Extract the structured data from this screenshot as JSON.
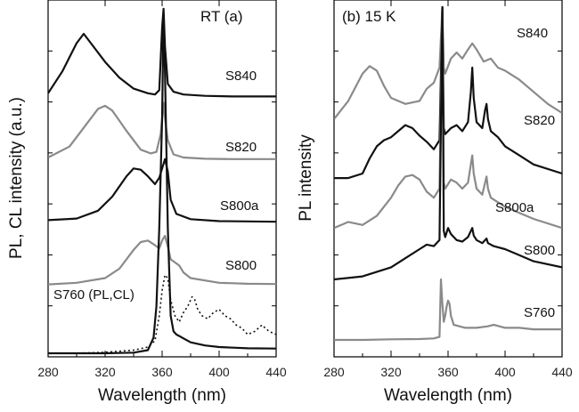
{
  "chart_data": [
    {
      "type": "line",
      "panel_label": "RT  (a)",
      "xlabel": "Wavelength (nm)",
      "ylabel": "PL, CL intensity (a.u.)",
      "xlim": [
        280,
        440
      ],
      "xticks": [
        280,
        320,
        360,
        400,
        440
      ],
      "y_ticks_labeled": false,
      "series": [
        {
          "name": "S840",
          "color": "#111111",
          "style": "solid",
          "offset": 0.82,
          "x": [
            280,
            290,
            300,
            305,
            310,
            320,
            330,
            340,
            350,
            355,
            358,
            360,
            361,
            362,
            364,
            368,
            375,
            390,
            410,
            440
          ],
          "y": [
            0.83,
            0.9,
            0.99,
            1.02,
            0.99,
            0.93,
            0.88,
            0.845,
            0.83,
            0.826,
            0.84,
            1.04,
            1.1,
            0.98,
            0.86,
            0.835,
            0.826,
            0.822,
            0.82,
            0.82
          ]
        },
        {
          "name": "S820",
          "color": "#8a8a8a",
          "style": "solid",
          "offset": 0.62,
          "x": [
            280,
            295,
            305,
            315,
            320,
            325,
            335,
            345,
            352,
            356,
            359,
            361,
            362,
            364,
            368,
            375,
            390,
            410,
            440
          ],
          "y": [
            0.625,
            0.66,
            0.72,
            0.78,
            0.79,
            0.775,
            0.71,
            0.65,
            0.638,
            0.643,
            0.7,
            0.8,
            0.75,
            0.68,
            0.635,
            0.625,
            0.621,
            0.62,
            0.62
          ]
        },
        {
          "name": "S800a",
          "color": "#111111",
          "style": "solid",
          "offset": 0.42,
          "x": [
            280,
            300,
            315,
            325,
            335,
            340,
            345,
            350,
            355,
            358,
            360,
            362,
            364,
            366,
            370,
            380,
            400,
            420,
            440
          ],
          "y": [
            0.425,
            0.43,
            0.455,
            0.5,
            0.565,
            0.59,
            0.586,
            0.565,
            0.54,
            0.56,
            0.59,
            0.62,
            0.58,
            0.49,
            0.445,
            0.428,
            0.422,
            0.421,
            0.42
          ]
        },
        {
          "name": "S800",
          "color": "#8a8a8a",
          "style": "solid",
          "offset": 0.22,
          "x": [
            280,
            300,
            320,
            330,
            340,
            345,
            350,
            355,
            358,
            360,
            362,
            364,
            366,
            369,
            372,
            375,
            380,
            400,
            420,
            440
          ],
          "y": [
            0.22,
            0.225,
            0.24,
            0.27,
            0.33,
            0.355,
            0.36,
            0.345,
            0.335,
            0.36,
            0.375,
            0.34,
            0.3,
            0.29,
            0.28,
            0.258,
            0.24,
            0.225,
            0.222,
            0.221
          ]
        },
        {
          "name": "S760 (PL)",
          "color": "#111111",
          "style": "solid",
          "offset": 0.0,
          "x": [
            280,
            320,
            340,
            350,
            354,
            356,
            358,
            360,
            361,
            362,
            364,
            366,
            368,
            370,
            372,
            376,
            380,
            390,
            400,
            410,
            420,
            440
          ],
          "y": [
            0.0,
            0.0,
            0.002,
            0.01,
            0.05,
            0.15,
            0.4,
            0.75,
            1.08,
            0.9,
            0.4,
            0.12,
            0.07,
            0.06,
            0.055,
            0.045,
            0.035,
            0.025,
            0.02,
            0.018,
            0.016,
            0.015
          ]
        },
        {
          "name": "S760 (CL)",
          "color": "#111111",
          "style": "dotted",
          "offset": 0.0,
          "x": [
            280,
            300,
            320,
            340,
            350,
            355,
            358,
            360,
            362,
            364,
            366,
            369,
            372,
            375,
            378,
            381,
            383,
            385,
            388,
            392,
            396,
            400,
            404,
            408,
            412,
            416,
            420,
            425,
            430,
            435,
            440
          ],
          "y": [
            0.0,
            0.0,
            0.003,
            0.01,
            0.02,
            0.04,
            0.12,
            0.2,
            0.25,
            0.24,
            0.17,
            0.12,
            0.1,
            0.13,
            0.15,
            0.18,
            0.17,
            0.14,
            0.12,
            0.11,
            0.13,
            0.14,
            0.12,
            0.11,
            0.09,
            0.08,
            0.06,
            0.07,
            0.09,
            0.07,
            0.06
          ]
        }
      ],
      "annotations": [
        "S840",
        "S820",
        "S800a",
        "S800",
        "S760 (PL,CL)"
      ]
    },
    {
      "type": "line",
      "panel_label": "(b) 15 K",
      "xlabel": "Wavelength (nm)",
      "ylabel": "PL intensity",
      "xlim": [
        280,
        440
      ],
      "xticks": [
        280,
        320,
        360,
        400,
        440
      ],
      "y_ticks_labeled": false,
      "series": [
        {
          "name": "S840",
          "color": "#8a8a8a",
          "style": "solid",
          "offset": 0.72,
          "x": [
            280,
            290,
            300,
            305,
            310,
            315,
            320,
            330,
            340,
            345,
            350,
            354,
            356,
            357,
            358,
            362,
            366,
            370,
            374,
            377,
            380,
            385,
            390,
            395,
            400,
            410,
            420,
            430,
            440
          ],
          "y": [
            0.73,
            0.79,
            0.88,
            0.905,
            0.89,
            0.84,
            0.8,
            0.78,
            0.79,
            0.83,
            0.85,
            0.9,
            1.1,
            0.9,
            0.88,
            0.93,
            0.95,
            0.93,
            0.96,
            0.98,
            0.96,
            0.92,
            0.93,
            0.9,
            0.89,
            0.86,
            0.82,
            0.78,
            0.75
          ]
        },
        {
          "name": "S820",
          "color": "#111111",
          "style": "solid",
          "offset": 0.53,
          "x": [
            280,
            290,
            300,
            305,
            310,
            315,
            320,
            325,
            330,
            335,
            340,
            345,
            350,
            354,
            356,
            357,
            358,
            362,
            366,
            370,
            374,
            376,
            377,
            378,
            380,
            384,
            386,
            387,
            388,
            390,
            395,
            400,
            410,
            420,
            440
          ],
          "y": [
            0.535,
            0.535,
            0.55,
            0.6,
            0.64,
            0.66,
            0.67,
            0.69,
            0.71,
            0.7,
            0.675,
            0.655,
            0.63,
            0.66,
            1.1,
            0.7,
            0.68,
            0.7,
            0.71,
            0.69,
            0.72,
            0.82,
            0.9,
            0.8,
            0.72,
            0.7,
            0.76,
            0.78,
            0.73,
            0.69,
            0.67,
            0.64,
            0.61,
            0.58,
            0.55
          ]
        },
        {
          "name": "S800a",
          "color": "#8a8a8a",
          "style": "solid",
          "offset": 0.37,
          "x": [
            280,
            290,
            300,
            310,
            320,
            325,
            330,
            335,
            340,
            345,
            350,
            354,
            356,
            357,
            358,
            362,
            366,
            370,
            374,
            377,
            378,
            380,
            384,
            387,
            388,
            390,
            395,
            400,
            410,
            420,
            440
          ],
          "y": [
            0.37,
            0.39,
            0.38,
            0.41,
            0.47,
            0.51,
            0.54,
            0.545,
            0.53,
            0.49,
            0.47,
            0.5,
            1.1,
            0.52,
            0.5,
            0.53,
            0.52,
            0.5,
            0.52,
            0.61,
            0.55,
            0.5,
            0.48,
            0.54,
            0.5,
            0.47,
            0.455,
            0.44,
            0.42,
            0.4,
            0.37
          ]
        },
        {
          "name": "S800",
          "color": "#111111",
          "style": "solid",
          "offset": 0.2,
          "x": [
            280,
            300,
            320,
            330,
            340,
            345,
            350,
            354,
            356,
            357,
            358,
            360,
            362,
            366,
            370,
            374,
            377,
            378,
            380,
            384,
            387,
            388,
            392,
            400,
            410,
            420,
            440
          ],
          "y": [
            0.2,
            0.21,
            0.24,
            0.27,
            0.3,
            0.315,
            0.31,
            0.33,
            1.1,
            0.36,
            0.34,
            0.37,
            0.35,
            0.33,
            0.325,
            0.34,
            0.37,
            0.345,
            0.33,
            0.32,
            0.335,
            0.32,
            0.31,
            0.3,
            0.28,
            0.26,
            0.24
          ]
        },
        {
          "name": "S760",
          "color": "#8a8a8a",
          "style": "solid",
          "offset": 0.0,
          "x": [
            280,
            300,
            320,
            340,
            350,
            354,
            355,
            356,
            357,
            358,
            359,
            360,
            361,
            362,
            364,
            368,
            372,
            380,
            388,
            392,
            396,
            400,
            410,
            420,
            430,
            440
          ],
          "y": [
            0.0,
            0.0,
            0.002,
            0.003,
            0.005,
            0.01,
            0.2,
            0.12,
            0.06,
            0.08,
            0.11,
            0.13,
            0.12,
            0.08,
            0.05,
            0.045,
            0.04,
            0.04,
            0.045,
            0.05,
            0.045,
            0.04,
            0.04,
            0.035,
            0.035,
            0.035
          ]
        }
      ],
      "annotations": [
        "S840",
        "S820",
        "S800a",
        "S800",
        "S760"
      ]
    }
  ]
}
